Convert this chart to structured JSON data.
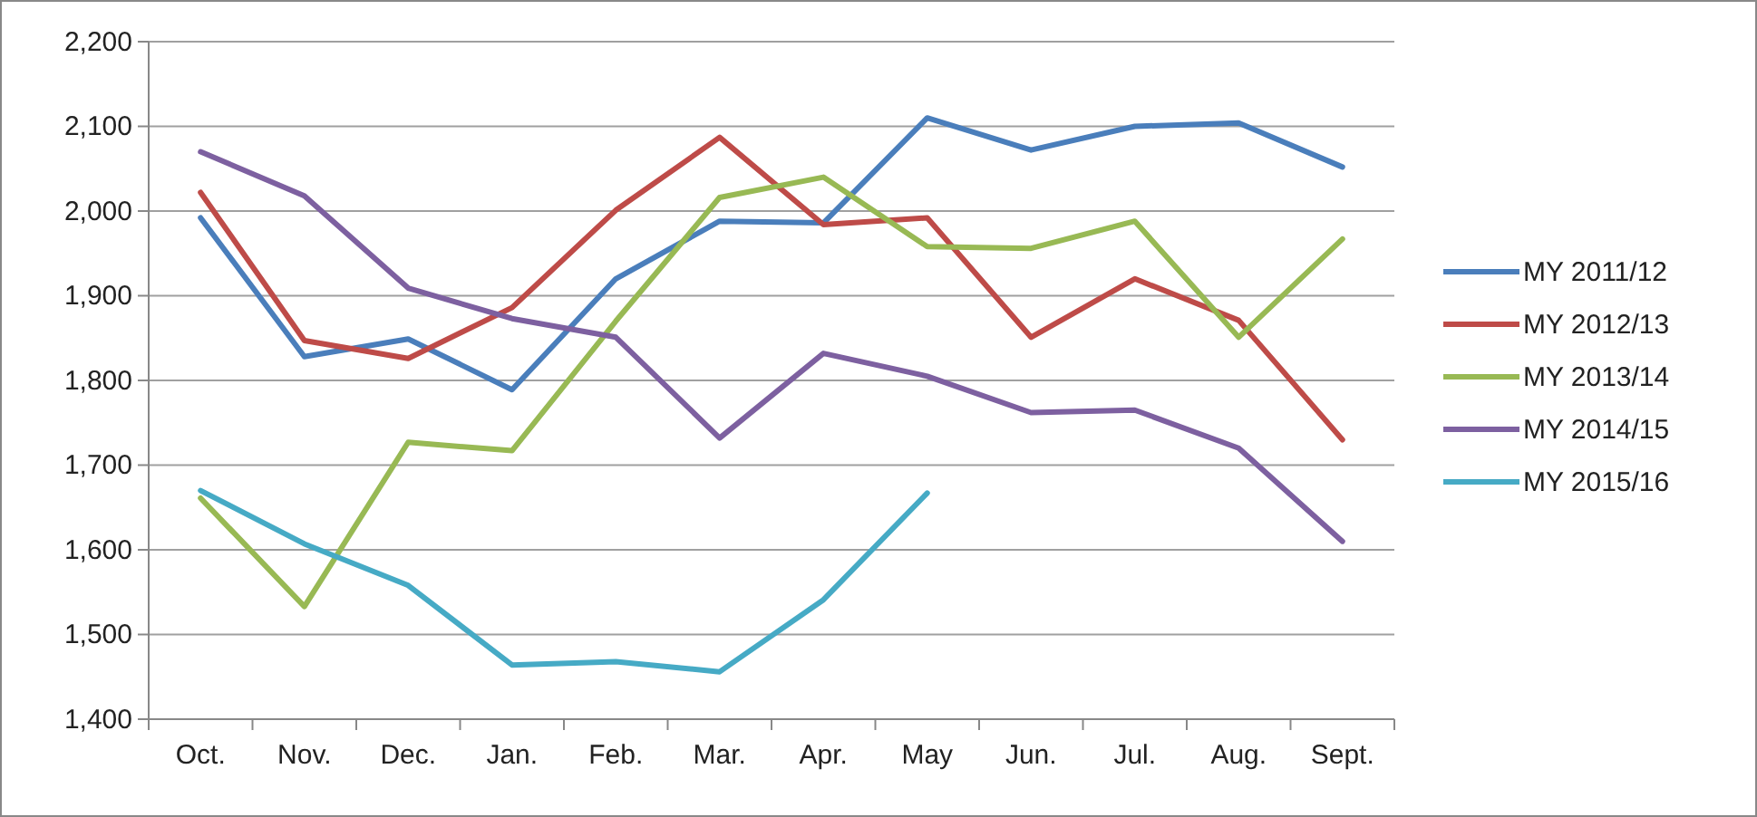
{
  "chart_data": {
    "type": "line",
    "categories": [
      "Oct.",
      "Nov.",
      "Dec.",
      "Jan.",
      "Feb.",
      "Mar.",
      "Apr.",
      "May",
      "Jun.",
      "Jul.",
      "Aug.",
      "Sept."
    ],
    "series": [
      {
        "name": "MY 2011/12",
        "color": "#4a7ebb",
        "values": [
          1992,
          1828,
          1849,
          1789,
          1920,
          1988,
          1986,
          2110,
          2072,
          2100,
          2104,
          2052
        ]
      },
      {
        "name": "MY 2012/13",
        "color": "#be4b48",
        "values": [
          2022,
          1847,
          1826,
          1886,
          2001,
          2087,
          1984,
          1992,
          1851,
          1920,
          1871,
          1730
        ]
      },
      {
        "name": "MY 2013/14",
        "color": "#98b954",
        "values": [
          1661,
          1533,
          1727,
          1717,
          1870,
          2016,
          2040,
          1958,
          1956,
          1988,
          1851,
          1967
        ]
      },
      {
        "name": "MY 2014/15",
        "color": "#7d60a0",
        "values": [
          2070,
          2018,
          1909,
          1873,
          1851,
          1732,
          1832,
          1805,
          1762,
          1765,
          1720,
          1610
        ]
      },
      {
        "name": "MY 2015/16",
        "color": "#46aac5",
        "values": [
          1670,
          1607,
          1558,
          1464,
          1468,
          1456,
          1541,
          1667,
          null,
          null,
          null,
          null
        ]
      }
    ],
    "ylim": [
      1400,
      2200
    ],
    "yticks": [
      {
        "value": 1400,
        "label": "1,400"
      },
      {
        "value": 1500,
        "label": "1,500"
      },
      {
        "value": 1600,
        "label": "1,600"
      },
      {
        "value": 1700,
        "label": "1,700"
      },
      {
        "value": 1800,
        "label": "1,800"
      },
      {
        "value": 1900,
        "label": "1,900"
      },
      {
        "value": 2000,
        "label": "2,000"
      },
      {
        "value": 2100,
        "label": "2,100"
      },
      {
        "value": 2200,
        "label": "2,200"
      }
    ],
    "grid": "y",
    "legend": "right",
    "marker": "none",
    "line_style": "solid"
  }
}
